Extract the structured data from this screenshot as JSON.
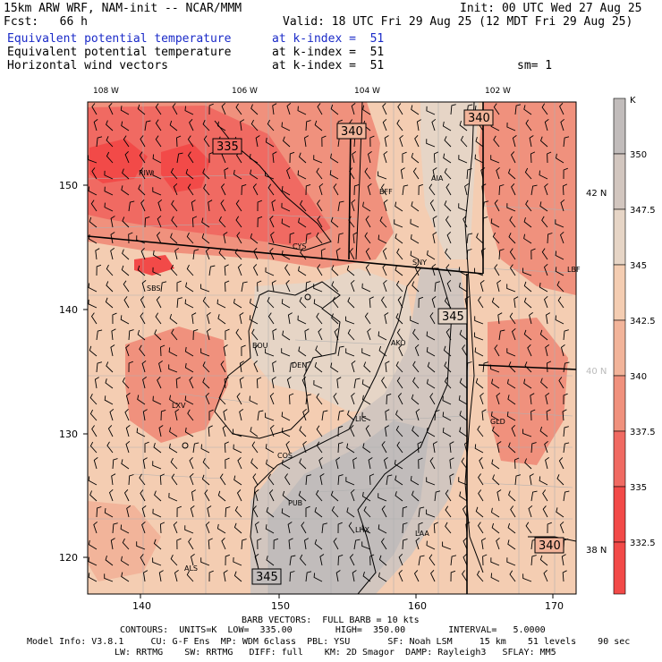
{
  "header": {
    "model_line": "15km ARW WRF, NAM-init -- NCAR/MMM",
    "init_line": "Init: 00 UTC Wed 27 Aug 25",
    "fcst_line": "Fcst:   66 h",
    "valid_line": "Valid: 18 UTC Fri 29 Aug 25 (12 MDT Fri 29 Aug 25)",
    "field1_name": "Equivalent potential temperature",
    "field1_level": "at k-index =  51",
    "field2_name": "Equivalent potential temperature",
    "field2_level": "at k-index =  51",
    "field3_name": "Horizontal wind vectors",
    "field3_level": "at k-index =  51",
    "smoothing": "sm= 1"
  },
  "colors": {
    "field1_text": "#1a2ac8",
    "c332": "#f24a48",
    "c335": "#f06a62",
    "c337": "#f0917d",
    "c340": "#f2b49a",
    "c342": "#f4cdb2",
    "c345": "#e6d5c6",
    "c347": "#d2c6bf",
    "c350": "#c1bcbb"
  },
  "axes": {
    "x_ticks": [
      "140",
      "150",
      "160",
      "170"
    ],
    "y_ticks": [
      "150",
      "140",
      "130",
      "120"
    ],
    "lon_labels": [
      "108 W",
      "106 W",
      "104 W",
      "102 W"
    ],
    "lat_labels": [
      "42 N",
      "40 N",
      "38 N"
    ]
  },
  "contours": {
    "labels": [
      "335",
      "340",
      "340",
      "345",
      "345",
      "340"
    ]
  },
  "cities": [
    "RIW",
    "BFF",
    "AIA",
    "CYS",
    "SNY",
    "SBS",
    "BOU",
    "DEN",
    "AKO",
    "LXV",
    "LIC",
    "COS",
    "PUB",
    "LHX",
    "LAA",
    "GLD",
    "ALS",
    "LBF"
  ],
  "colorbar": {
    "unit": "K",
    "labels": [
      "350",
      "347.5",
      "345",
      "342.5",
      "340",
      "337.5",
      "335",
      "332.5"
    ]
  },
  "footer": {
    "barb_line": "BARB VECTORS:  FULL BARB = 10 kts",
    "contour_line": "CONTOURS:  UNITS=K  LOW=  335.00        HIGH=  350.00        INTERVAL=   5.0000",
    "model_info_line": "Model Info: V3.8.1     CU: G-F Ens  MP: WDM 6class  PBL: YSU       SF: Noah LSM     15 km    51 levels    90 sec",
    "physics_line": "LW: RRTMG    SW: RRTMG   DIFF: full    KM: 2D Smagor  DAMP: Rayleigh3   SFLAY: MM5"
  }
}
